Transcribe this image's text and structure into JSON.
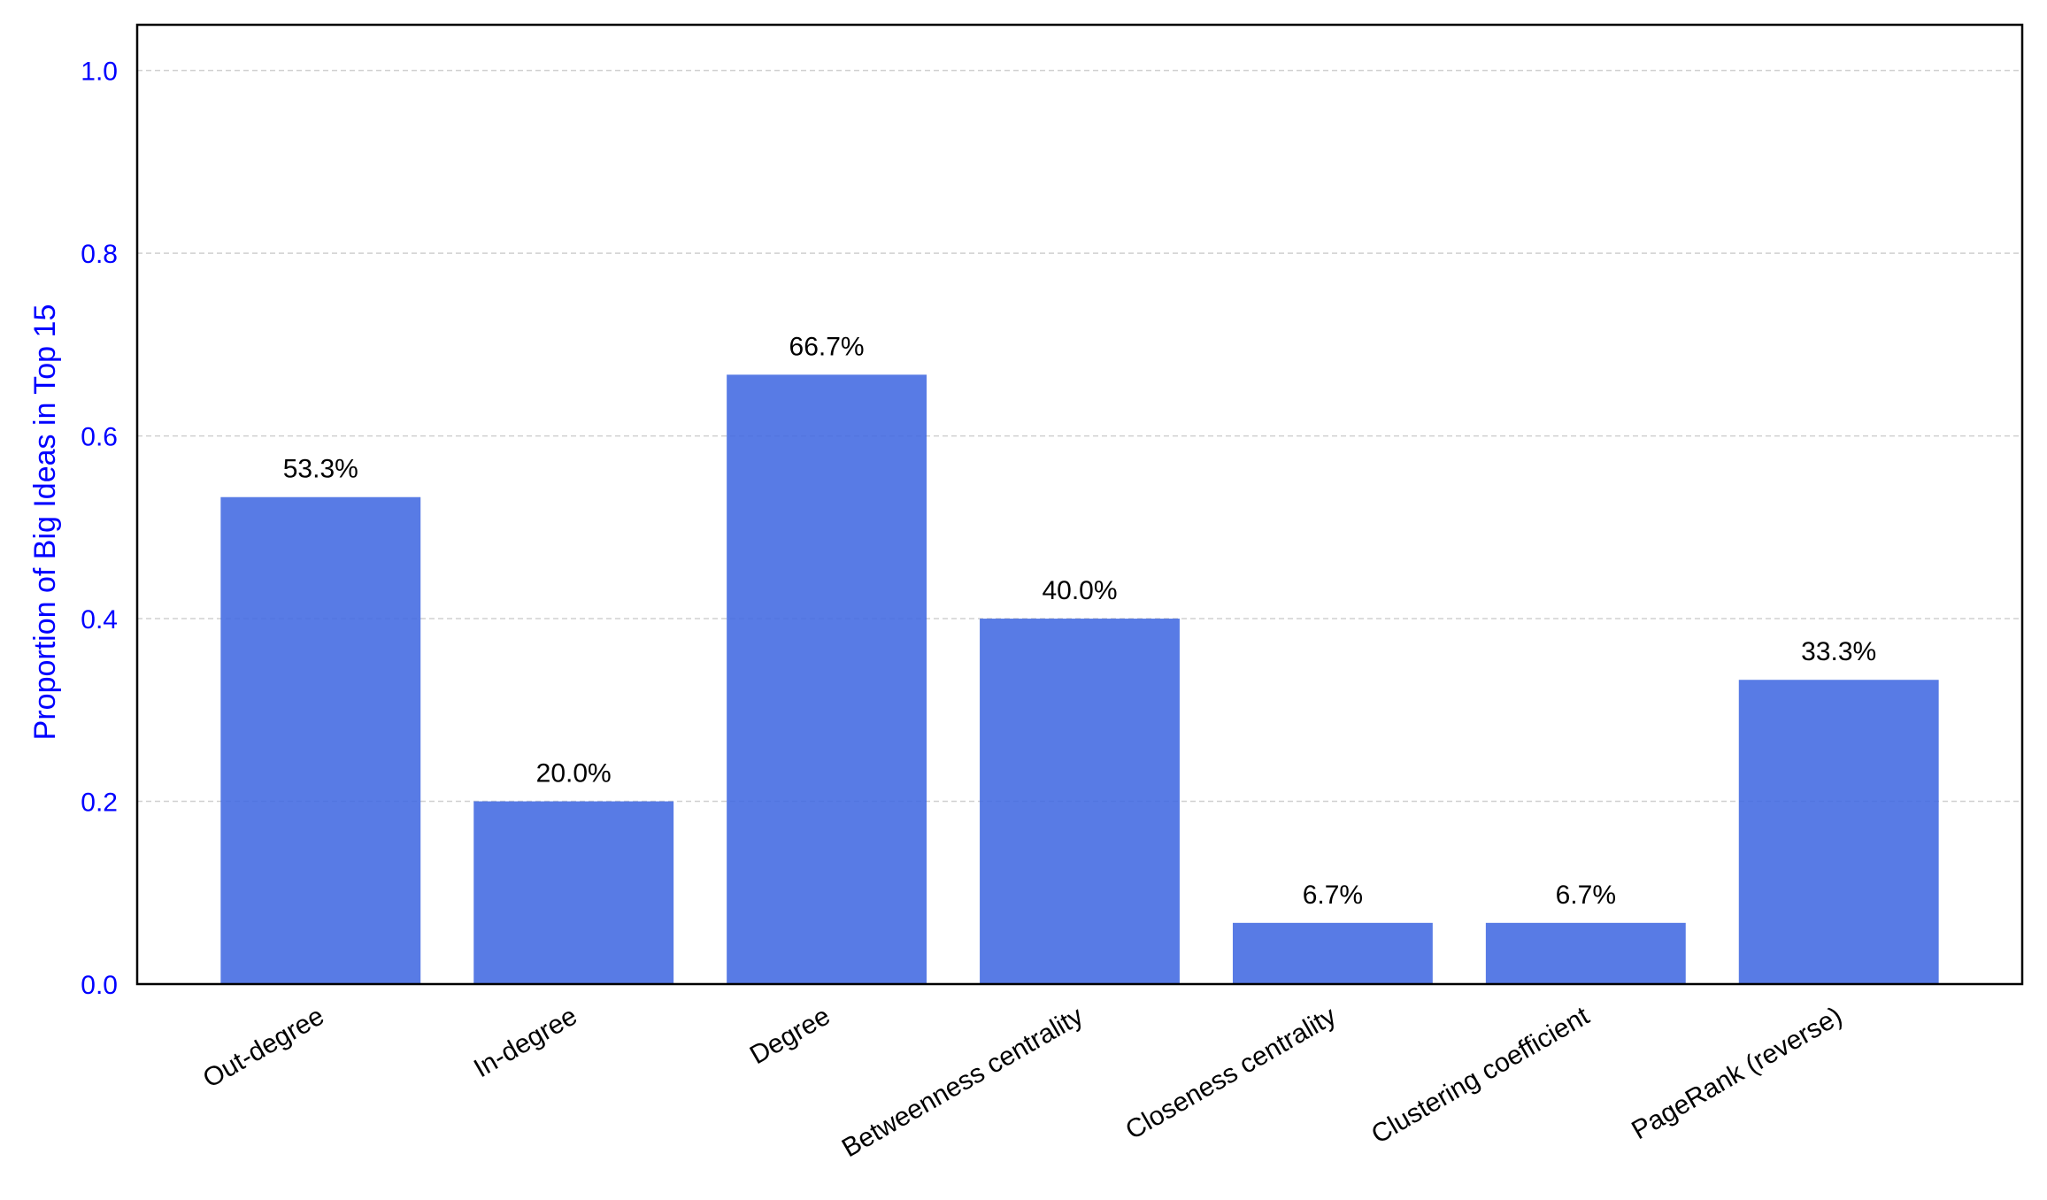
{
  "colors": {
    "bar": "#4169e1",
    "axis_text": "#0000ff",
    "grid": "#d0d0d0",
    "frame": "#000000"
  },
  "chart_data": {
    "type": "bar",
    "title": "",
    "xlabel": "",
    "ylabel": "Proportion of Big Ideas in Top 15",
    "ylim": [
      0,
      1.05
    ],
    "yticks": [
      "0.0",
      "0.2",
      "0.4",
      "0.6",
      "0.8",
      "1.0"
    ],
    "grid": true,
    "categories": [
      "Out-degree",
      "In-degree",
      "Degree",
      "Betweenness centrality",
      "Closeness centrality",
      "Clustering coefficient",
      "PageRank (reverse)"
    ],
    "values": [
      0.533,
      0.2,
      0.667,
      0.4,
      0.067,
      0.067,
      0.333
    ],
    "value_labels": [
      "53.3%",
      "20.0%",
      "66.7%",
      "40.0%",
      "6.7%",
      "6.7%",
      "33.3%"
    ]
  }
}
